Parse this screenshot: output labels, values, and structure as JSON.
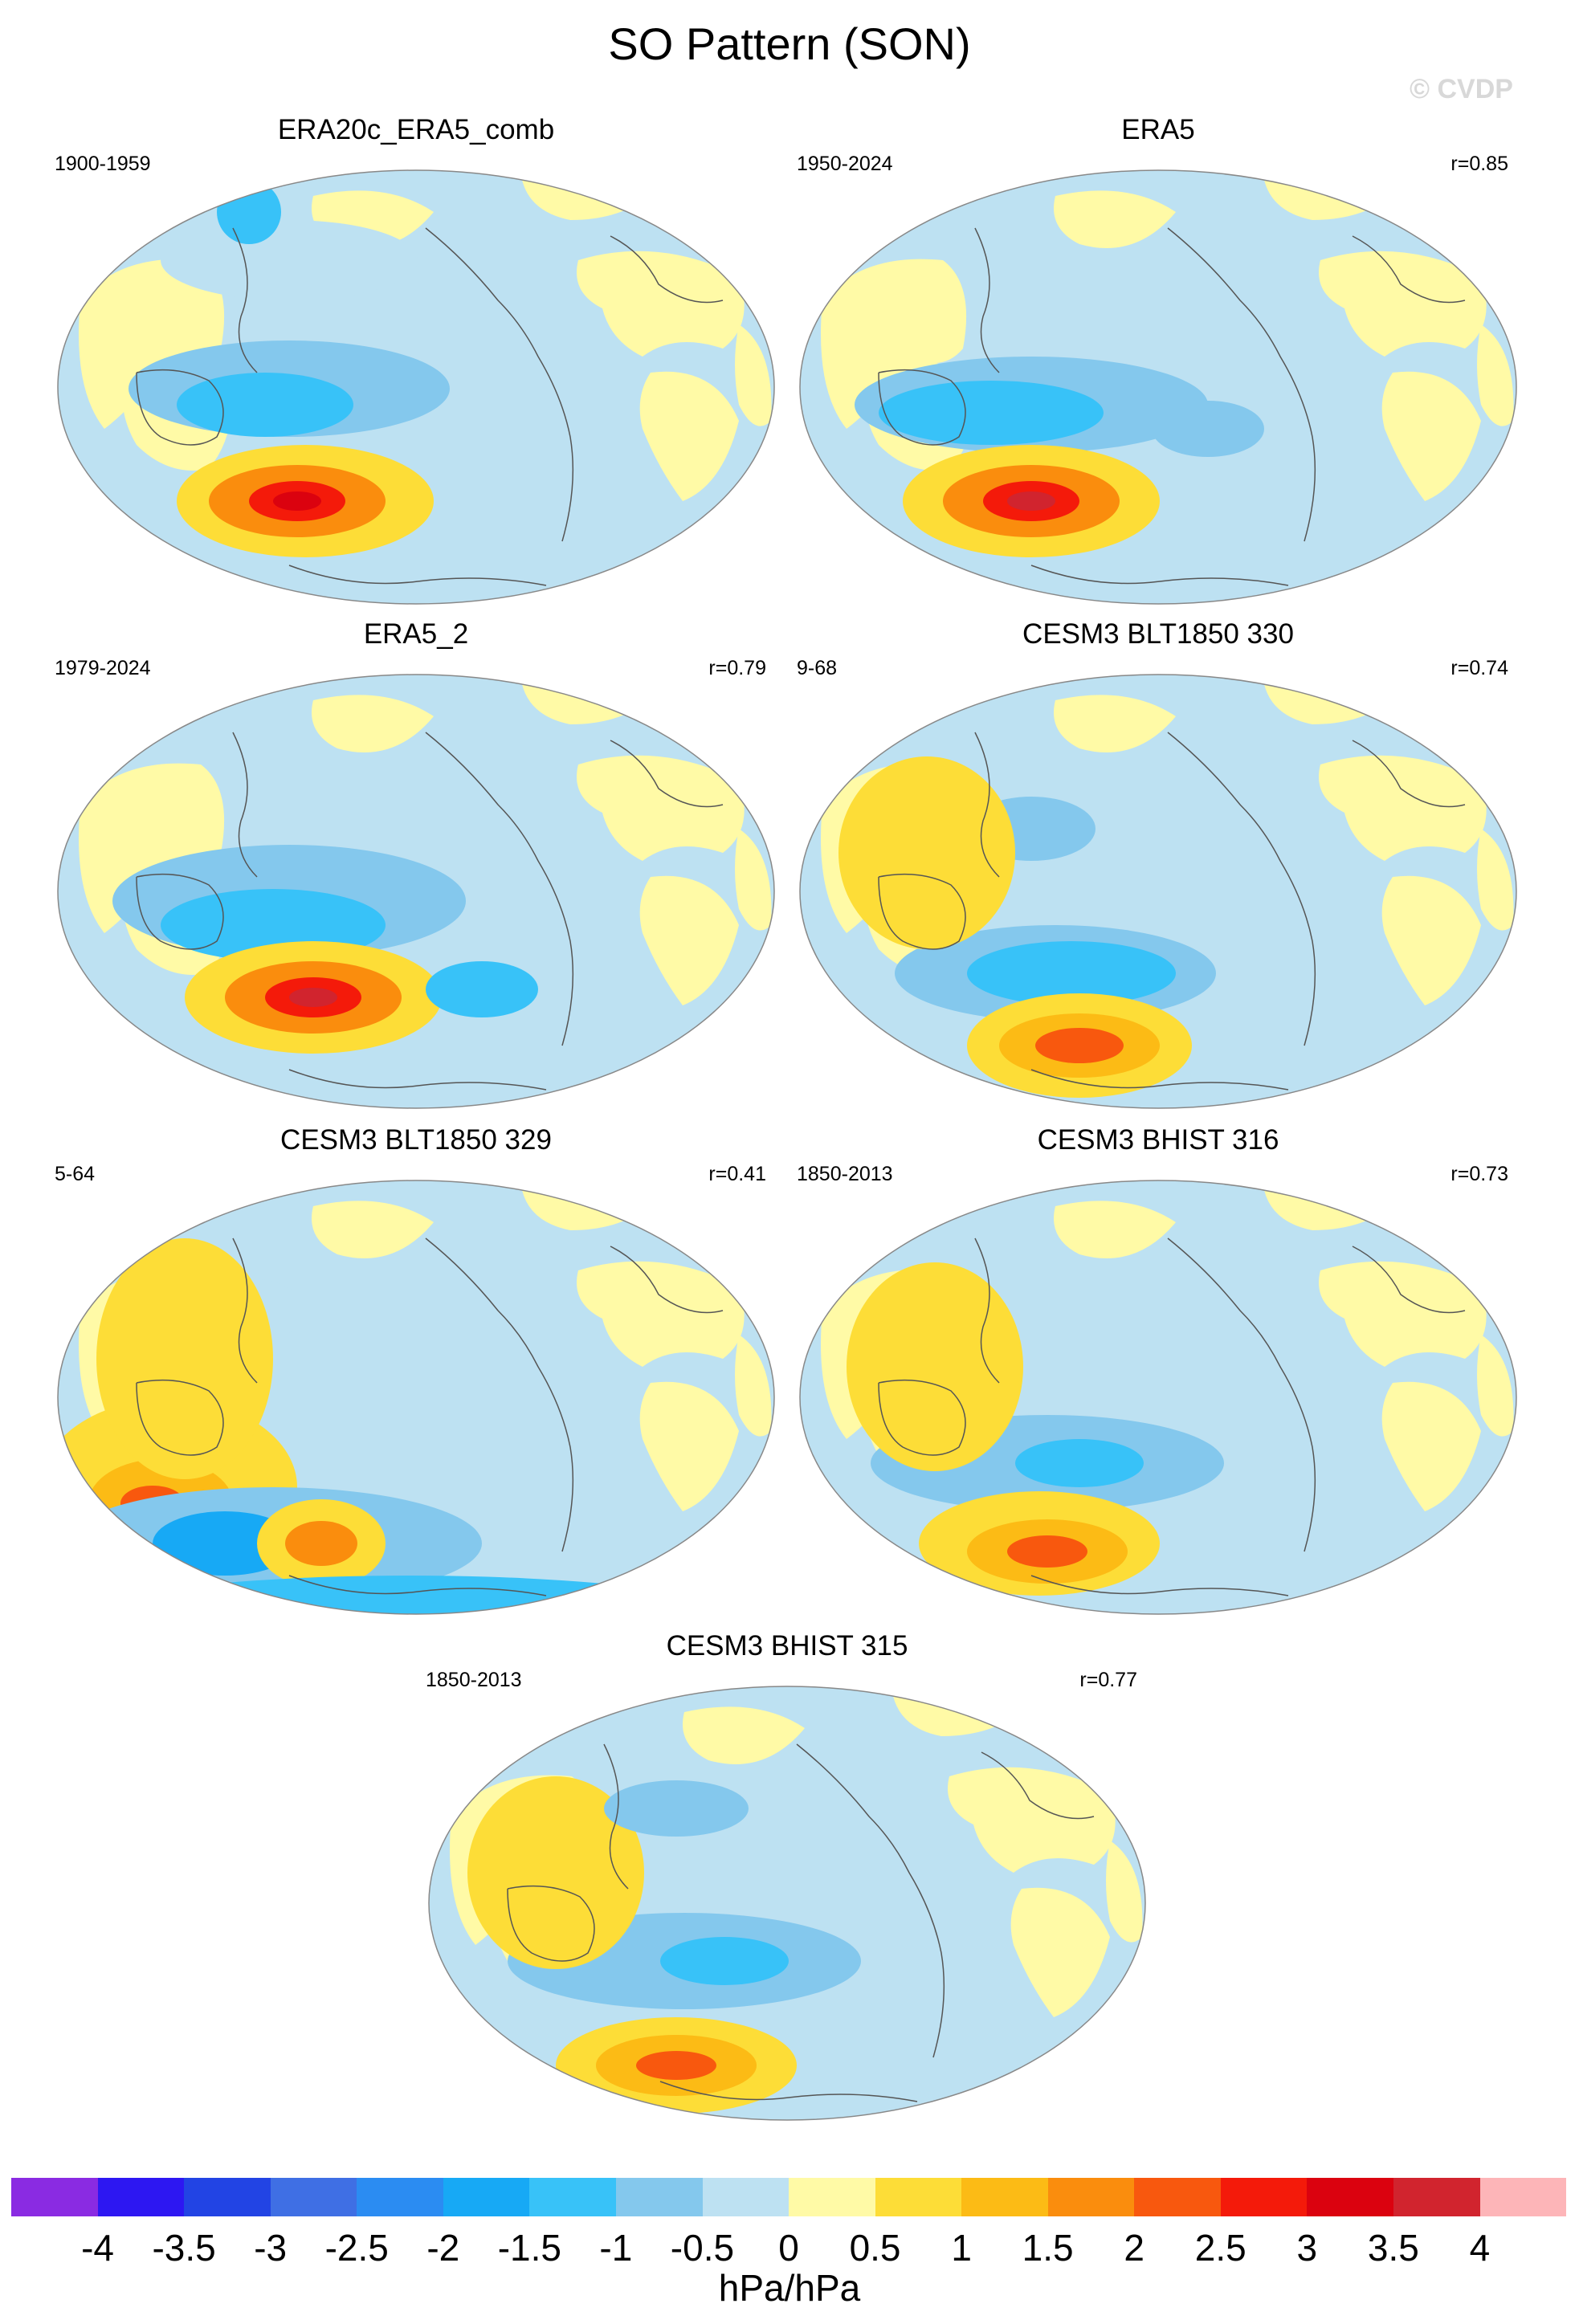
{
  "figure": {
    "title": "SO Pattern (SON)",
    "copyright": "© CVDP"
  },
  "panels": [
    {
      "title": "ERA20c_ERA5_comb",
      "years": "1900-1959",
      "corr": ""
    },
    {
      "title": "ERA5",
      "years": "1950-2024",
      "corr": "r=0.85"
    },
    {
      "title": "ERA5_2",
      "years": "1979-2024",
      "corr": "r=0.79"
    },
    {
      "title": "CESM3 BLT1850 330",
      "years": "9-68",
      "corr": "r=0.74"
    },
    {
      "title": "CESM3 BLT1850 329",
      "years": "5-64",
      "corr": "r=0.41"
    },
    {
      "title": "CESM3 BHIST 316",
      "years": "1850-2013",
      "corr": "r=0.73"
    },
    {
      "title": "CESM3 BHIST 315",
      "years": "1850-2013",
      "corr": "r=0.77"
    }
  ],
  "map_data": {
    "projection": "Robinson (Pacific-centered)",
    "variable": "SLP regression",
    "centers": [
      {
        "panel": 0,
        "south_pacific_high_max": 3.0,
        "mid_latitude_low_min": -2.0,
        "north_pacific": -1.5
      },
      {
        "panel": 1,
        "south_pacific_high_max": 3.5,
        "mid_latitude_low_min": -2.0
      },
      {
        "panel": 2,
        "south_pacific_high_max": 3.5,
        "mid_latitude_low_min": -1.5
      },
      {
        "panel": 3,
        "south_pacific_high_max": 2.0,
        "mid_latitude_low_min": -2.0
      },
      {
        "panel": 4,
        "south_pacific_high_max": 1.5,
        "australia_high_max": 2.0,
        "antarctic_low_min": -2.0
      },
      {
        "panel": 5,
        "south_pacific_high_max": 2.0,
        "mid_latitude_low_min": -2.0
      },
      {
        "panel": 6,
        "south_pacific_high_max": 2.0,
        "mid_latitude_low_min": -1.5
      }
    ]
  },
  "colorbar": {
    "colors": [
      "#8a2be2",
      "#2d17f2",
      "#2244e4",
      "#3f6fe4",
      "#2b8cf2",
      "#17a9f5",
      "#38c2f8",
      "#84c8ed",
      "#bde1f2",
      "#fffaa6",
      "#fddd37",
      "#fcbb15",
      "#fa8d0d",
      "#f8580e",
      "#f41a0a",
      "#db020f",
      "#d1242e",
      "#fdb5b8"
    ],
    "tick_labels": [
      "-4",
      "-3.5",
      "-3",
      "-2.5",
      "-2",
      "-1.5",
      "-1",
      "-0.5",
      "0",
      "0.5",
      "1",
      "1.5",
      "2",
      "2.5",
      "3",
      "3.5",
      "4"
    ],
    "units": "hPa/hPa"
  }
}
